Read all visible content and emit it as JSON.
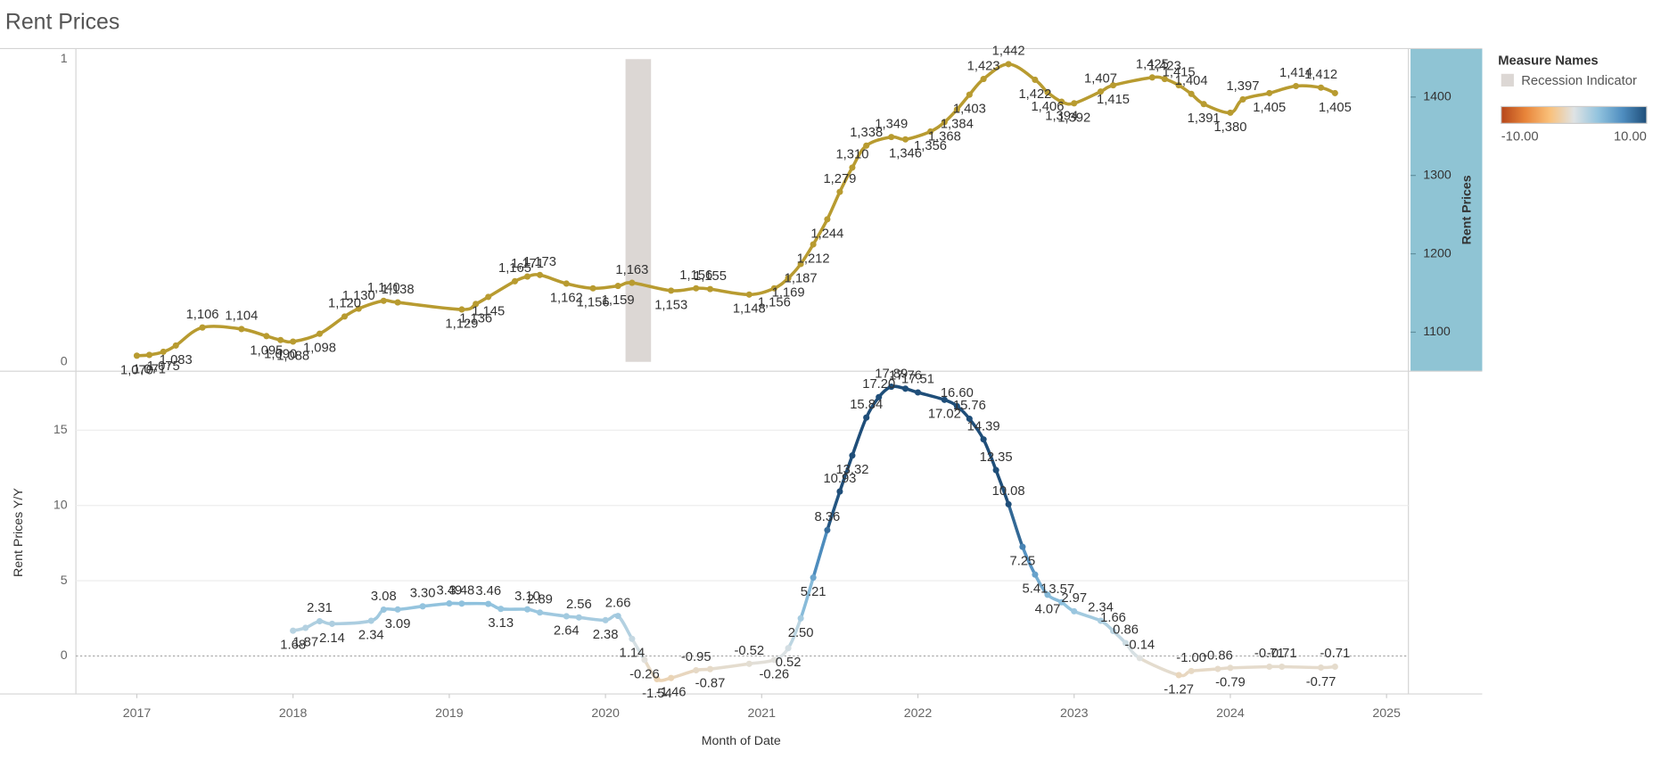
{
  "title": "Rent Prices",
  "legend": {
    "title": "Measure Names"
  },
  "chart_data": [
    {
      "type": "line",
      "xlim": [
        2016.61,
        2025.14
      ],
      "ylim": [
        -0.031,
        1.035
      ],
      "yticks": [
        0,
        1
      ],
      "y2lim": [
        1050.2,
        1461.9
      ],
      "y2ticks": [
        1100,
        1200,
        1300,
        1400
      ],
      "y2_label": "Rent Prices",
      "series": [
        {
          "name": "Recession Indicator",
          "type": "bar",
          "color": "#dcd7d4",
          "x": [
            2020.17,
            2020.25
          ],
          "values": [
            1,
            1
          ]
        },
        {
          "type": "line",
          "axis": "y2",
          "color": "#b89b30",
          "x": [
            2017.0,
            2017.08,
            2017.17,
            2017.25,
            2017.42,
            2017.67,
            2017.83,
            2017.92,
            2018.0,
            2018.17,
            2018.33,
            2018.42,
            2018.58,
            2018.67,
            2019.08,
            2019.17,
            2019.25,
            2019.42,
            2019.5,
            2019.58,
            2019.75,
            2019.92,
            2020.08,
            2020.17,
            2020.42,
            2020.58,
            2020.67,
            2020.92,
            2021.08,
            2021.17,
            2021.25,
            2021.33,
            2021.42,
            2021.5,
            2021.58,
            2021.67,
            2021.83,
            2021.92,
            2022.08,
            2022.17,
            2022.25,
            2022.33,
            2022.42,
            2022.58,
            2022.75,
            2022.83,
            2022.92,
            2023.0,
            2023.17,
            2023.25,
            2023.5,
            2023.58,
            2023.67,
            2023.75,
            2023.83,
            2024.0,
            2024.08,
            2024.25,
            2024.42,
            2024.58,
            2024.67
          ],
          "values": [
            1070,
            1071,
            1075,
            1083,
            1106,
            1104,
            1095,
            1090,
            1088,
            1098,
            1120,
            1130,
            1140,
            1138,
            1129,
            1136,
            1145,
            1165,
            1171,
            1173,
            1162,
            1156,
            1159,
            1163,
            1153,
            1156,
            1155,
            1148,
            1156,
            1169,
            1187,
            1212,
            1244,
            1279,
            1310,
            1338,
            1349,
            1346,
            1356,
            1368,
            1384,
            1403,
            1423,
            1442,
            1422,
            1406,
            1394,
            1392,
            1407,
            1415,
            1425,
            1423,
            1415,
            1404,
            1391,
            1380,
            1397,
            1405,
            1414,
            1412,
            1405
          ],
          "value_labels": [
            "1,070",
            "1,071",
            "1,075",
            "1,083",
            "1,106",
            "1,104",
            "1,095",
            "1,090",
            "1,088",
            "1,098",
            "1,120",
            "1,130",
            "1,140",
            "1,138",
            "1,129",
            "1,136",
            "1,145",
            "1,165",
            "1,171",
            "1,173",
            "1,162",
            "1,156",
            "1,159",
            "1,163",
            "1,153",
            "1,156",
            "1,155",
            "1,148",
            "1,156",
            "1,169",
            "1,187",
            "1,212",
            "1,244",
            "1,279",
            "1,310",
            "1,338",
            "1,349",
            "1,346",
            "1,356",
            "1,368",
            "1,384",
            "1,403",
            "1,423",
            "1,442",
            "1,422",
            "1,406",
            "1,394",
            "1,392",
            "1,407",
            "1,415",
            "1,425",
            "1,423",
            "1,415",
            "1,404",
            "1,391",
            "1,380",
            "1,397",
            "1,405",
            "1,414",
            "1,412",
            "1,405"
          ]
        }
      ]
    },
    {
      "type": "line",
      "xlim": [
        2016.61,
        2025.14
      ],
      "xticks": [
        2017,
        2018,
        2019,
        2020,
        2021,
        2022,
        2023,
        2024,
        2025
      ],
      "x_label": "Month of Date",
      "ylim": [
        -2.52,
        18.92
      ],
      "yticks": [
        0,
        5,
        10,
        15
      ],
      "grid": true,
      "y_label": "Rent Prices Y/Y",
      "color_legend": {
        "ticks": [
          {
            "value": -10,
            "label": "-10.00"
          },
          {
            "value": 10,
            "label": "10.00"
          }
        ],
        "colors": [
          "#b5461a",
          "#e8853a",
          "#f9c07a",
          "#dfe3e4",
          "#92c3de",
          "#4f8ec0",
          "#1f4e79"
        ]
      },
      "series": [
        {
          "type": "line",
          "x": [
            2018.0,
            2018.08,
            2018.17,
            2018.25,
            2018.5,
            2018.58,
            2018.67,
            2018.83,
            2019.0,
            2019.08,
            2019.25,
            2019.33,
            2019.5,
            2019.58,
            2019.75,
            2019.83,
            2020.0,
            2020.08,
            2020.17,
            2020.25,
            2020.33,
            2020.42,
            2020.58,
            2020.67,
            2020.92,
            2021.08,
            2021.17,
            2021.25,
            2021.33,
            2021.42,
            2021.5,
            2021.58,
            2021.67,
            2021.75,
            2021.83,
            2021.92,
            2022.0,
            2022.17,
            2022.25,
            2022.33,
            2022.42,
            2022.5,
            2022.58,
            2022.67,
            2022.75,
            2022.83,
            2022.92,
            2023.0,
            2023.17,
            2023.25,
            2023.33,
            2023.42,
            2023.67,
            2023.75,
            2023.92,
            2024.0,
            2024.25,
            2024.33,
            2024.58,
            2024.67
          ],
          "values": [
            1.68,
            1.87,
            2.31,
            2.14,
            2.34,
            3.08,
            3.09,
            3.3,
            3.49,
            3.48,
            3.46,
            3.13,
            3.1,
            2.89,
            2.64,
            2.56,
            2.38,
            2.66,
            1.14,
            -0.26,
            -1.54,
            -1.46,
            -0.95,
            -0.87,
            -0.52,
            -0.26,
            0.52,
            2.5,
            5.21,
            8.36,
            10.93,
            13.32,
            15.84,
            17.2,
            17.89,
            17.76,
            17.51,
            17.02,
            16.6,
            15.76,
            14.39,
            12.35,
            10.08,
            7.25,
            5.41,
            4.07,
            3.57,
            2.97,
            2.34,
            1.66,
            0.86,
            -0.14,
            -1.27,
            -1.0,
            -0.86,
            -0.79,
            -0.71,
            -0.71,
            -0.77,
            -0.71
          ],
          "value_labels": [
            "1.68",
            "1.87",
            "2.31",
            "2.14",
            "2.34",
            "3.08",
            "3.09",
            "3.30",
            "3.49",
            "3.48",
            "3.46",
            "3.13",
            "3.10",
            "2.89",
            "2.64",
            "2.56",
            "2.38",
            "2.66",
            "1.14",
            "-0.26",
            "-1.54",
            "-1.46",
            "-0.95",
            "-0.87",
            "-0.52",
            "-0.26",
            "0.52",
            "2.50",
            "5.21",
            "8.36",
            "10.93",
            "13.32",
            "15.84",
            "17.20",
            "17.89",
            "17.76",
            "17.51",
            "17.02",
            "16.60",
            "15.76",
            "14.39",
            "12.35",
            "10.08",
            "7.25",
            "5.41",
            "4.07",
            "3.57",
            "2.97",
            "2.34",
            "1.66",
            "0.86",
            "-0.14",
            "-1.27",
            "-1.00",
            "-0.86",
            "-0.79",
            "-0.71",
            "-0.71",
            "-0.77",
            "-0.71"
          ]
        }
      ]
    }
  ]
}
